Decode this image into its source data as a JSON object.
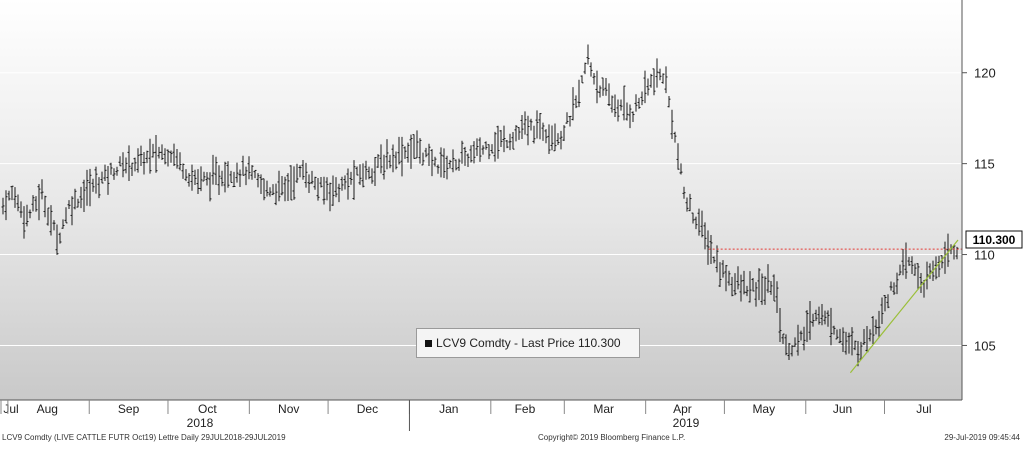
{
  "footer": {
    "left": "LCV9 Comdty (LIVE CATTLE FUTR  Oct19) Lettre  Daily 29JUL2018-29JUL2019",
    "center": "Copyright© 2019 Bloomberg Finance L.P.",
    "right": "29-Jul-2019 09:45:44"
  },
  "legend": {
    "label": "LCV9 Comdty - Last Price 110.300"
  },
  "last_price_label": "110.300",
  "colors": {
    "bars": "#1a1a1a",
    "last_price_line": "#e53935",
    "trendline": "#9bbf3a",
    "price_tag_bg": "#ffffff"
  },
  "chart_data": {
    "type": "ohlc",
    "title": "",
    "xlabel": "",
    "ylabel": "",
    "y_axis_side": "right",
    "ylim": [
      102,
      124
    ],
    "y_ticks": [
      105,
      110,
      115,
      120
    ],
    "x_ticks": [
      "Jul",
      "Aug",
      "Sep",
      "Oct",
      "Nov",
      "Dec",
      "Jan",
      "Feb",
      "Mar",
      "Apr",
      "May",
      "Jun",
      "Jul"
    ],
    "x_groups": [
      "2018",
      "2019"
    ],
    "grid": "horizontal",
    "last_price": 110.3,
    "series": [
      {
        "name": "LCV9 Comdty",
        "anchors": [
          [
            "2018-07-29",
            112.5
          ],
          [
            "2018-08-03",
            113.4
          ],
          [
            "2018-08-08",
            112.0
          ],
          [
            "2018-08-14",
            113.3
          ],
          [
            "2018-08-20",
            110.8
          ],
          [
            "2018-08-24",
            112.6
          ],
          [
            "2018-08-30",
            113.4
          ],
          [
            "2018-09-06",
            114.2
          ],
          [
            "2018-09-13",
            114.9
          ],
          [
            "2018-09-20",
            115.1
          ],
          [
            "2018-09-27",
            115.6
          ],
          [
            "2018-10-03",
            115.6
          ],
          [
            "2018-10-10",
            114.2
          ],
          [
            "2018-10-17",
            114.1
          ],
          [
            "2018-10-24",
            114.5
          ],
          [
            "2018-10-31",
            114.6
          ],
          [
            "2018-11-07",
            113.6
          ],
          [
            "2018-11-14",
            113.6
          ],
          [
            "2018-11-21",
            114.6
          ],
          [
            "2018-11-28",
            113.6
          ],
          [
            "2018-12-05",
            113.6
          ],
          [
            "2018-12-12",
            114.3
          ],
          [
            "2018-12-19",
            114.8
          ],
          [
            "2018-12-27",
            115.5
          ],
          [
            "2019-01-04",
            115.9
          ],
          [
            "2019-01-10",
            115.0
          ],
          [
            "2019-01-17",
            115.0
          ],
          [
            "2019-01-24",
            115.4
          ],
          [
            "2019-01-31",
            116.0
          ],
          [
            "2019-02-07",
            116.3
          ],
          [
            "2019-02-14",
            116.9
          ],
          [
            "2019-02-21",
            116.9
          ],
          [
            "2019-02-28",
            116.5
          ],
          [
            "2019-03-06",
            118.5
          ],
          [
            "2019-03-10",
            120.8
          ],
          [
            "2019-03-13",
            119.5
          ],
          [
            "2019-03-20",
            118.2
          ],
          [
            "2019-03-27",
            117.8
          ],
          [
            "2019-04-03",
            119.5
          ],
          [
            "2019-04-08",
            119.9
          ],
          [
            "2019-04-11",
            117.5
          ],
          [
            "2019-04-16",
            113.0
          ],
          [
            "2019-04-22",
            111.5
          ],
          [
            "2019-04-29",
            109.2
          ],
          [
            "2019-05-06",
            108.3
          ],
          [
            "2019-05-13",
            108.0
          ],
          [
            "2019-05-20",
            108.4
          ],
          [
            "2019-05-24",
            104.8
          ],
          [
            "2019-05-30",
            105.2
          ],
          [
            "2019-06-05",
            106.9
          ],
          [
            "2019-06-12",
            106.0
          ],
          [
            "2019-06-17",
            105.0
          ],
          [
            "2019-06-21",
            104.8
          ],
          [
            "2019-06-27",
            106.0
          ],
          [
            "2019-07-03",
            107.9
          ],
          [
            "2019-07-10",
            109.7
          ],
          [
            "2019-07-16",
            108.3
          ],
          [
            "2019-07-22",
            109.6
          ],
          [
            "2019-07-26",
            110.3
          ]
        ]
      }
    ],
    "annotations": [
      {
        "type": "horizontal_line",
        "y": 110.3,
        "from": "2019-04-25",
        "to": "2019-07-29"
      },
      {
        "type": "trendline",
        "from": [
          "2019-06-18",
          103.5
        ],
        "to": [
          "2019-07-29",
          110.8
        ]
      }
    ]
  }
}
